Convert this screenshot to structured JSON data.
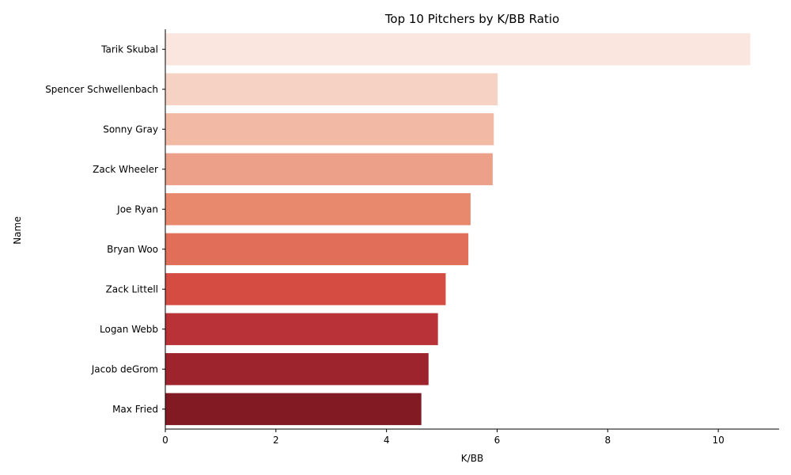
{
  "chart_data": {
    "type": "bar",
    "orientation": "horizontal",
    "title": "Top 10 Pitchers by K/BB Ratio",
    "xlabel": "K/BB",
    "ylabel": "Name",
    "xlim": [
      0,
      11.1
    ],
    "xticks": [
      0,
      2,
      4,
      6,
      8,
      10
    ],
    "grid": false,
    "categories": [
      "Tarik Skubal",
      "Spencer Schwellenbach",
      "Sonny Gray",
      "Zack Wheeler",
      "Joe Ryan",
      "Bryan Woo",
      "Zack Littell",
      "Logan Webb",
      "Jacob deGrom",
      "Max Fried"
    ],
    "values": [
      10.58,
      6.01,
      5.94,
      5.92,
      5.52,
      5.48,
      5.07,
      4.93,
      4.76,
      4.63
    ],
    "colors": [
      "#fbe6df",
      "#f6d2c4",
      "#f2b9a4",
      "#eca089",
      "#e8886d",
      "#e16e59",
      "#d44c42",
      "#b93237",
      "#9d242c",
      "#821a24"
    ]
  }
}
